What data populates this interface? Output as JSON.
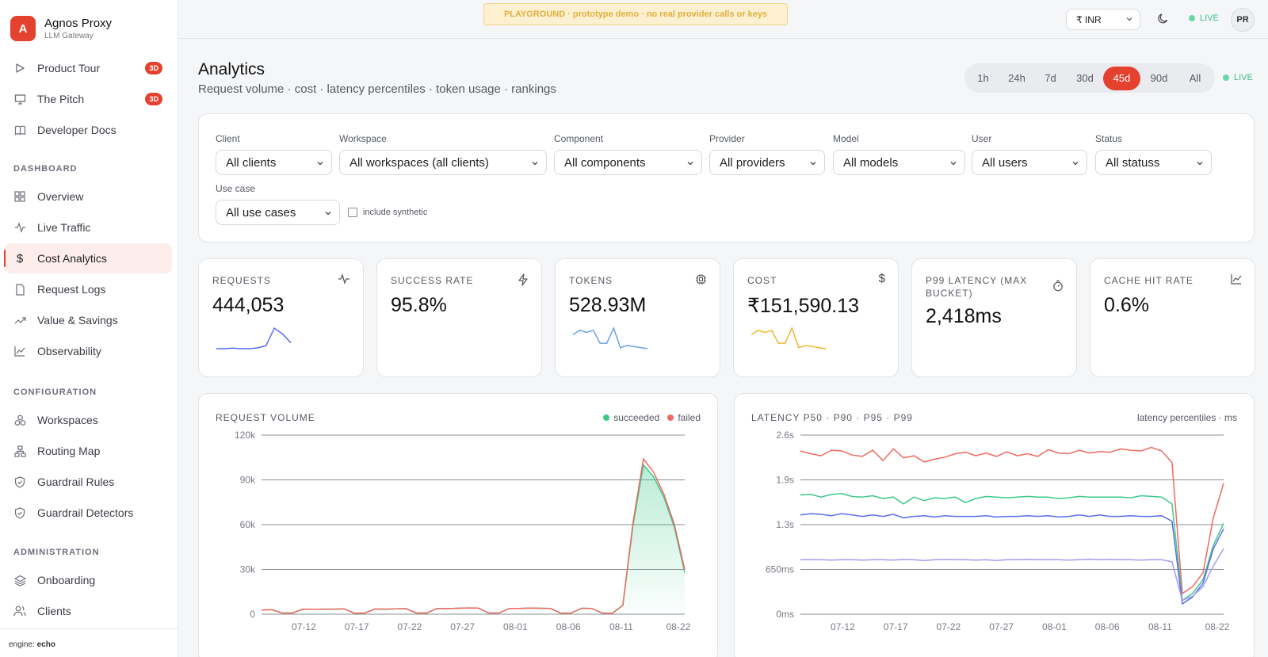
{
  "brand": {
    "initial": "A",
    "name": "Agnos Proxy",
    "subtitle": "LLM Gateway"
  },
  "sidebar": {
    "top_items": [
      {
        "label": "Product Tour",
        "badge": "3D"
      },
      {
        "label": "The Pitch",
        "badge": "3D"
      },
      {
        "label": "Developer Docs"
      }
    ],
    "sections": [
      {
        "label": "DASHBOARD",
        "items": [
          "Overview",
          "Live Traffic",
          "Cost Analytics",
          "Request Logs",
          "Value & Savings",
          "Observability"
        ]
      },
      {
        "label": "CONFIGURATION",
        "items": [
          "Workspaces",
          "Routing Map",
          "Guardrail Rules",
          "Guardrail Detectors"
        ]
      },
      {
        "label": "ADMINISTRATION",
        "items": [
          "Onboarding",
          "Clients"
        ]
      }
    ],
    "active_item": "Cost Analytics",
    "engine_label": "engine:",
    "engine_value": "echo"
  },
  "topbar": {
    "banner": "PLAYGROUND · prototype demo · no real provider calls or keys",
    "currency": "₹ INR",
    "live": "LIVE",
    "avatar": "PR"
  },
  "header": {
    "title": "Analytics",
    "subtitle": "Request volume · cost · latency percentiles · token usage · rankings",
    "ranges": [
      "1h",
      "24h",
      "7d",
      "30d",
      "45d",
      "90d",
      "All"
    ],
    "active_range": "45d",
    "live": "LIVE"
  },
  "filters": {
    "client": {
      "label": "Client",
      "value": "All clients"
    },
    "workspace": {
      "label": "Workspace",
      "value": "All workspaces (all clients)"
    },
    "component": {
      "label": "Component",
      "value": "All components"
    },
    "provider": {
      "label": "Provider",
      "value": "All providers"
    },
    "model": {
      "label": "Model",
      "value": "All models"
    },
    "user": {
      "label": "User",
      "value": "All users"
    },
    "status": {
      "label": "Status",
      "value": "All statuss"
    },
    "use_case": {
      "label": "Use case",
      "value": "All use cases"
    },
    "include_synthetic": "include synthetic"
  },
  "kpis": [
    {
      "label": "REQUESTS",
      "value": "444,053",
      "icon": "activity-icon",
      "spark": [
        3,
        3,
        3.2,
        3,
        3,
        3.3,
        4,
        10,
        8,
        5
      ],
      "color": "#5b6ef0"
    },
    {
      "label": "SUCCESS RATE",
      "value": "95.8%",
      "icon": "zap-icon"
    },
    {
      "label": "TOKENS",
      "value": "528.93M",
      "icon": "cpu-icon",
      "spark": [
        8,
        10,
        9,
        10,
        4,
        4,
        11,
        2,
        3,
        2.5,
        2,
        1.5
      ],
      "color": "#6aa0e8"
    },
    {
      "label": "COST",
      "value": "₹151,590.13",
      "icon": "dollar-icon",
      "spark": [
        8,
        10,
        9,
        10,
        4,
        4,
        11,
        2,
        3,
        2.5,
        2,
        1.5
      ],
      "color": "#f2b630"
    },
    {
      "label": "P99 LATENCY (MAX BUCKET)",
      "value": "2,418ms",
      "icon": "timer-icon"
    },
    {
      "label": "CACHE HIT RATE",
      "value": "0.6%",
      "icon": "chart-icon"
    }
  ],
  "charts": {
    "volume": {
      "title": "REQUEST VOLUME",
      "legend": [
        "succeeded",
        "failed"
      ]
    },
    "latency": {
      "title": "LATENCY P50 · P90 · P95 · P99",
      "note": "latency percentiles · ms"
    }
  },
  "chart_data": [
    {
      "type": "area",
      "title": "REQUEST VOLUME",
      "x_ticks": [
        "07-12",
        "07-17",
        "07-22",
        "07-27",
        "08-01",
        "08-06",
        "08-11",
        "08-22"
      ],
      "y_ticks": [
        "120k",
        "90k",
        "60k",
        "30k",
        "0"
      ],
      "ylim": [
        0,
        120000
      ],
      "series": [
        {
          "name": "succeeded",
          "color": "#3cc98c",
          "values": [
            2800,
            3000,
            800,
            800,
            3400,
            3300,
            3400,
            3400,
            3600,
            700,
            800,
            3500,
            3400,
            3600,
            3700,
            800,
            800,
            3800,
            3700,
            4000,
            4200,
            4100,
            800,
            800,
            3900,
            3800,
            4100,
            4000,
            3800,
            700,
            800,
            4000,
            3900,
            800,
            600,
            6000,
            60000,
            100000,
            92000,
            78000,
            58000,
            28000
          ]
        },
        {
          "name": "failed",
          "color": "#ef6a60",
          "values": [
            2800,
            3000,
            800,
            800,
            3400,
            3300,
            3400,
            3400,
            3600,
            700,
            800,
            3500,
            3400,
            3600,
            3700,
            800,
            800,
            3800,
            3700,
            4000,
            4200,
            4100,
            800,
            800,
            3900,
            3800,
            4100,
            4000,
            3800,
            700,
            800,
            4000,
            3900,
            800,
            600,
            6000,
            62000,
            104000,
            95000,
            80000,
            60000,
            30000
          ]
        }
      ]
    },
    {
      "type": "line",
      "title": "LATENCY P50 · P90 · P95 · P99",
      "x_ticks": [
        "07-12",
        "07-17",
        "07-22",
        "07-27",
        "08-01",
        "08-06",
        "08-11",
        "08-22"
      ],
      "y_ticks": [
        "2.6s",
        "1.9s",
        "1.3s",
        "650ms",
        "0ms"
      ],
      "ylim": [
        0,
        2600
      ],
      "series": [
        {
          "name": "p99",
          "color": "#ef6a60",
          "values": [
            2370,
            2330,
            2300,
            2380,
            2370,
            2310,
            2290,
            2380,
            2230,
            2400,
            2270,
            2300,
            2210,
            2250,
            2280,
            2330,
            2350,
            2300,
            2340,
            2290,
            2360,
            2300,
            2330,
            2290,
            2390,
            2340,
            2330,
            2380,
            2340,
            2360,
            2350,
            2400,
            2380,
            2370,
            2420,
            2370,
            2200,
            300,
            400,
            600,
            1400,
            1900
          ]
        },
        {
          "name": "p95",
          "color": "#3cc98c",
          "values": [
            1730,
            1740,
            1700,
            1740,
            1750,
            1710,
            1700,
            1720,
            1680,
            1700,
            1600,
            1700,
            1650,
            1690,
            1680,
            1700,
            1620,
            1680,
            1710,
            1700,
            1690,
            1700,
            1710,
            1700,
            1700,
            1680,
            1690,
            1710,
            1700,
            1700,
            1700,
            1700,
            1690,
            1720,
            1710,
            1700,
            1600,
            200,
            300,
            500,
            1000,
            1320
          ]
        },
        {
          "name": "p90",
          "color": "#5b6ef0",
          "values": [
            1440,
            1460,
            1450,
            1430,
            1460,
            1440,
            1420,
            1440,
            1420,
            1450,
            1400,
            1420,
            1430,
            1410,
            1430,
            1420,
            1420,
            1420,
            1430,
            1410,
            1420,
            1420,
            1430,
            1420,
            1430,
            1410,
            1420,
            1440,
            1420,
            1440,
            1420,
            1420,
            1430,
            1420,
            1420,
            1430,
            1350,
            150,
            250,
            450,
            950,
            1240
          ]
        },
        {
          "name": "p50",
          "color": "#a69af0",
          "values": [
            790,
            790,
            790,
            785,
            790,
            790,
            785,
            790,
            790,
            785,
            795,
            790,
            780,
            790,
            795,
            790,
            790,
            785,
            790,
            780,
            790,
            790,
            795,
            790,
            790,
            790,
            785,
            790,
            800,
            790,
            795,
            790,
            790,
            785,
            790,
            790,
            760,
            200,
            260,
            400,
            700,
            950
          ]
        }
      ]
    }
  ]
}
